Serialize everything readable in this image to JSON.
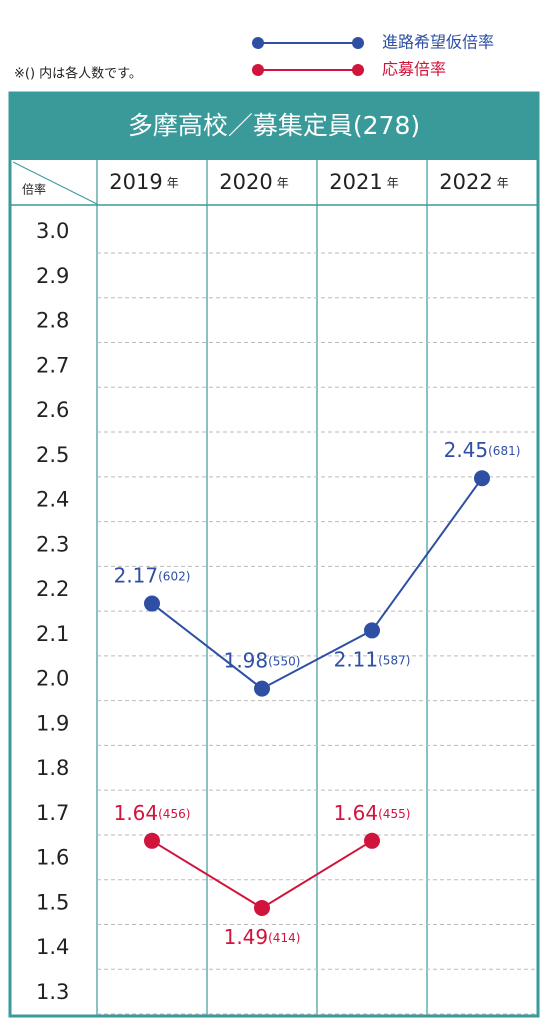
{
  "chart_data": {
    "type": "line",
    "note": "※() 内は各人数です。",
    "title": "多摩高校／募集定員(278)",
    "y_label": "倍率",
    "year_suffix": "年",
    "categories": [
      "2019",
      "2020",
      "2021",
      "2022"
    ],
    "series": [
      {
        "name": "進路希望仮倍率",
        "color": "#2e4fa3",
        "values": [
          2.17,
          1.98,
          2.11,
          2.45
        ],
        "notes": [
          "(602)",
          "(550)",
          "(587)",
          "(681)"
        ]
      },
      {
        "name": "応募倍率",
        "color": "#d0143c",
        "values": [
          1.64,
          1.49,
          1.64,
          null
        ],
        "notes": [
          "(456)",
          "(414)",
          "(455)",
          null
        ]
      }
    ],
    "ylim": [
      1.3,
      3.0
    ],
    "yticks": [
      {
        "value": 3.0,
        "label": "3.0"
      },
      2.9,
      2.8,
      2.7,
      2.6,
      2.5,
      2.4,
      2.3,
      2.2,
      2.1,
      {
        "value": 2.0,
        "label": "2.0"
      },
      1.9,
      1.8,
      1.7,
      1.6,
      1.5,
      1.4,
      1.3
    ],
    "grid": true
  }
}
